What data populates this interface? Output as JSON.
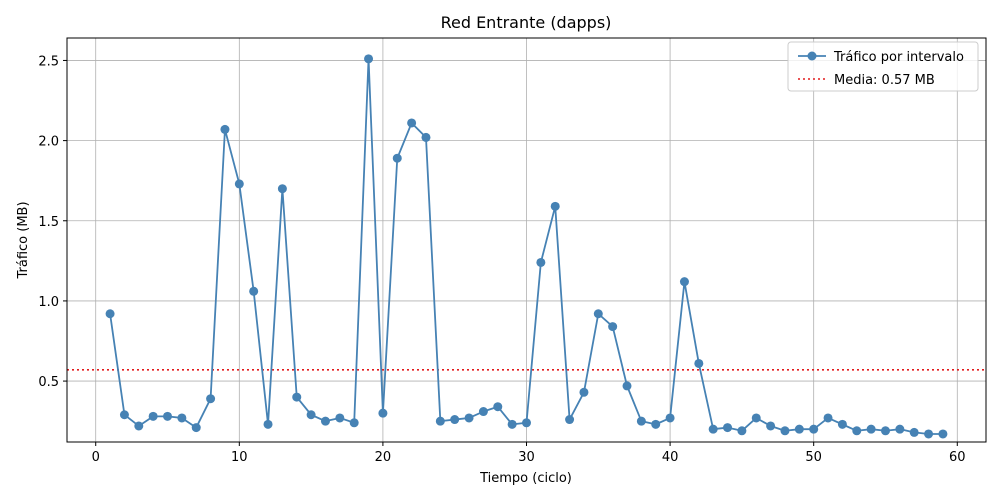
{
  "chart_data": {
    "type": "line",
    "title": "Red Entrante (dapps)",
    "xlabel": "Tiempo (ciclo)",
    "ylabel": "Tráfico (MB)",
    "xlim": [
      -2,
      62
    ],
    "ylim": [
      0.12,
      2.64
    ],
    "xticks": [
      0,
      10,
      20,
      30,
      40,
      50,
      60
    ],
    "yticks": [
      0.5,
      1.0,
      1.5,
      2.0,
      2.5
    ],
    "xtick_labels": [
      "0",
      "10",
      "20",
      "30",
      "40",
      "50",
      "60"
    ],
    "ytick_labels": [
      "0.5",
      "1.0",
      "1.5",
      "2.0",
      "2.5"
    ],
    "grid": true,
    "legend_position": "top-right",
    "series": [
      {
        "name": "Tráfico por intervalo",
        "color": "#4682b4",
        "marker": "circle",
        "x": [
          1,
          2,
          3,
          4,
          5,
          6,
          7,
          8,
          9,
          10,
          11,
          12,
          13,
          14,
          15,
          16,
          17,
          18,
          19,
          20,
          21,
          22,
          23,
          24,
          25,
          26,
          27,
          28,
          29,
          30,
          31,
          32,
          33,
          34,
          35,
          36,
          37,
          38,
          39,
          40,
          41,
          42,
          43,
          44,
          45,
          46,
          47,
          48,
          49,
          50,
          51,
          52,
          53,
          54,
          55,
          56,
          57,
          58,
          59
        ],
        "y": [
          0.92,
          0.29,
          0.22,
          0.28,
          0.28,
          0.27,
          0.21,
          0.39,
          2.07,
          1.73,
          1.06,
          0.23,
          1.7,
          0.4,
          0.29,
          0.25,
          0.27,
          0.24,
          2.51,
          0.3,
          1.89,
          2.11,
          2.02,
          0.25,
          0.26,
          0.27,
          0.31,
          0.34,
          0.23,
          0.24,
          1.24,
          1.59,
          0.26,
          0.43,
          0.92,
          0.84,
          0.47,
          0.25,
          0.23,
          0.27,
          1.12,
          0.61,
          0.2,
          0.21,
          0.19,
          0.27,
          0.22,
          0.19,
          0.2,
          0.2,
          0.27,
          0.23,
          0.19,
          0.2,
          0.19,
          0.2,
          0.18,
          0.17,
          0.17
        ]
      }
    ],
    "reference_lines": [
      {
        "name": "Media: 0.57 MB",
        "value": 0.57,
        "color": "#e31a1c",
        "style": "dotted"
      }
    ]
  }
}
